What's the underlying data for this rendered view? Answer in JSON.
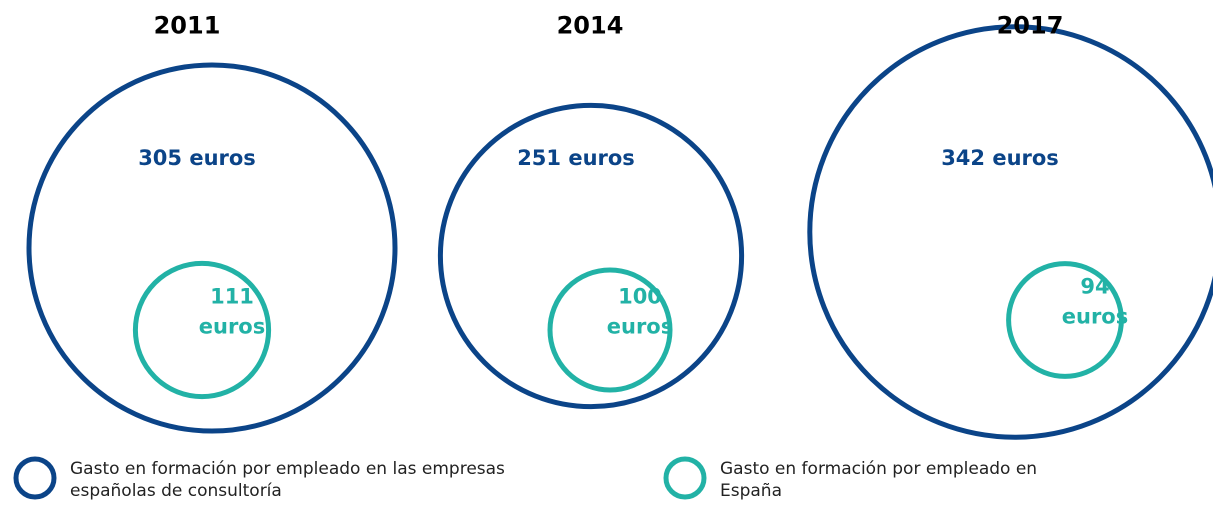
{
  "chart_data": {
    "type": "circles",
    "categories": [
      "2011",
      "2014",
      "2017"
    ],
    "series": [
      {
        "name": "Gasto en formación por empleado en las empresas españolas de consultoría",
        "color": "#0b4488",
        "values": [
          305,
          251,
          342
        ],
        "value_labels": [
          "305 euros",
          "251 euros",
          "342 euros"
        ]
      },
      {
        "name": "Gasto en formación por empleado en España",
        "color": "#22b2a6",
        "values": [
          111,
          100,
          94
        ],
        "value_labels": [
          "111 euros",
          "100 euros",
          "94 euros"
        ]
      }
    ]
  }
}
